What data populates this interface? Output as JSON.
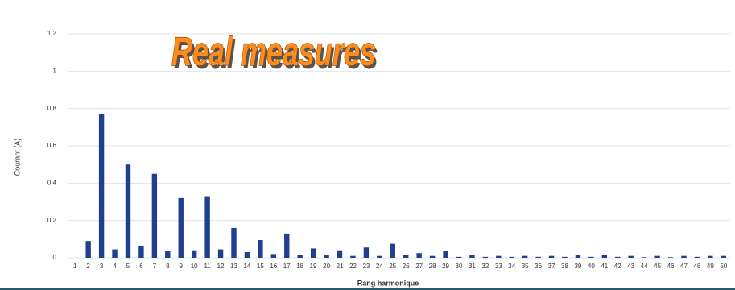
{
  "chart_data": {
    "type": "bar",
    "title": "Real measures",
    "x_label": "Rang harmonique",
    "y_label": "Courant (A)",
    "color": "#1f3f8f",
    "grid": true,
    "categories": [
      "1",
      "2",
      "3",
      "4",
      "5",
      "6",
      "7",
      "8",
      "9",
      "10",
      "11",
      "12",
      "13",
      "14",
      "15",
      "16",
      "17",
      "18",
      "19",
      "20",
      "21",
      "22",
      "23",
      "24",
      "25",
      "26",
      "27",
      "28",
      "29",
      "30",
      "31",
      "32",
      "33",
      "34",
      "35",
      "36",
      "37",
      "38",
      "39",
      "40",
      "41",
      "42",
      "43",
      "44",
      "45",
      "46",
      "47",
      "48",
      "49",
      "50"
    ],
    "values": [
      0,
      0.09,
      0.77,
      0.045,
      0.5,
      0.065,
      0.45,
      0.035,
      0.32,
      0.04,
      0.33,
      0.045,
      0.16,
      0.03,
      0.095,
      0.02,
      0.13,
      0.015,
      0.05,
      0.015,
      0.04,
      0.01,
      0.055,
      0.01,
      0.075,
      0.015,
      0.025,
      0.01,
      0.035,
      0.005,
      0.015,
      0.005,
      0.01,
      0.005,
      0.01,
      0.005,
      0.01,
      0.005,
      0.015,
      0.005,
      0.015,
      0.005,
      0.01,
      0.003,
      0.01,
      0.003,
      0.01,
      0.005,
      0.01,
      0.01
    ],
    "ylim": [
      0,
      1.2
    ],
    "yticks": [
      0,
      {
        "value": 0.2,
        "label": "0,2"
      },
      {
        "value": 0.4,
        "label": "0,4"
      },
      {
        "value": 0.6,
        "label": "0,6"
      },
      {
        "value": 0.8,
        "label": "0,8"
      },
      1,
      {
        "value": 1.2,
        "label": "1,2"
      }
    ]
  }
}
